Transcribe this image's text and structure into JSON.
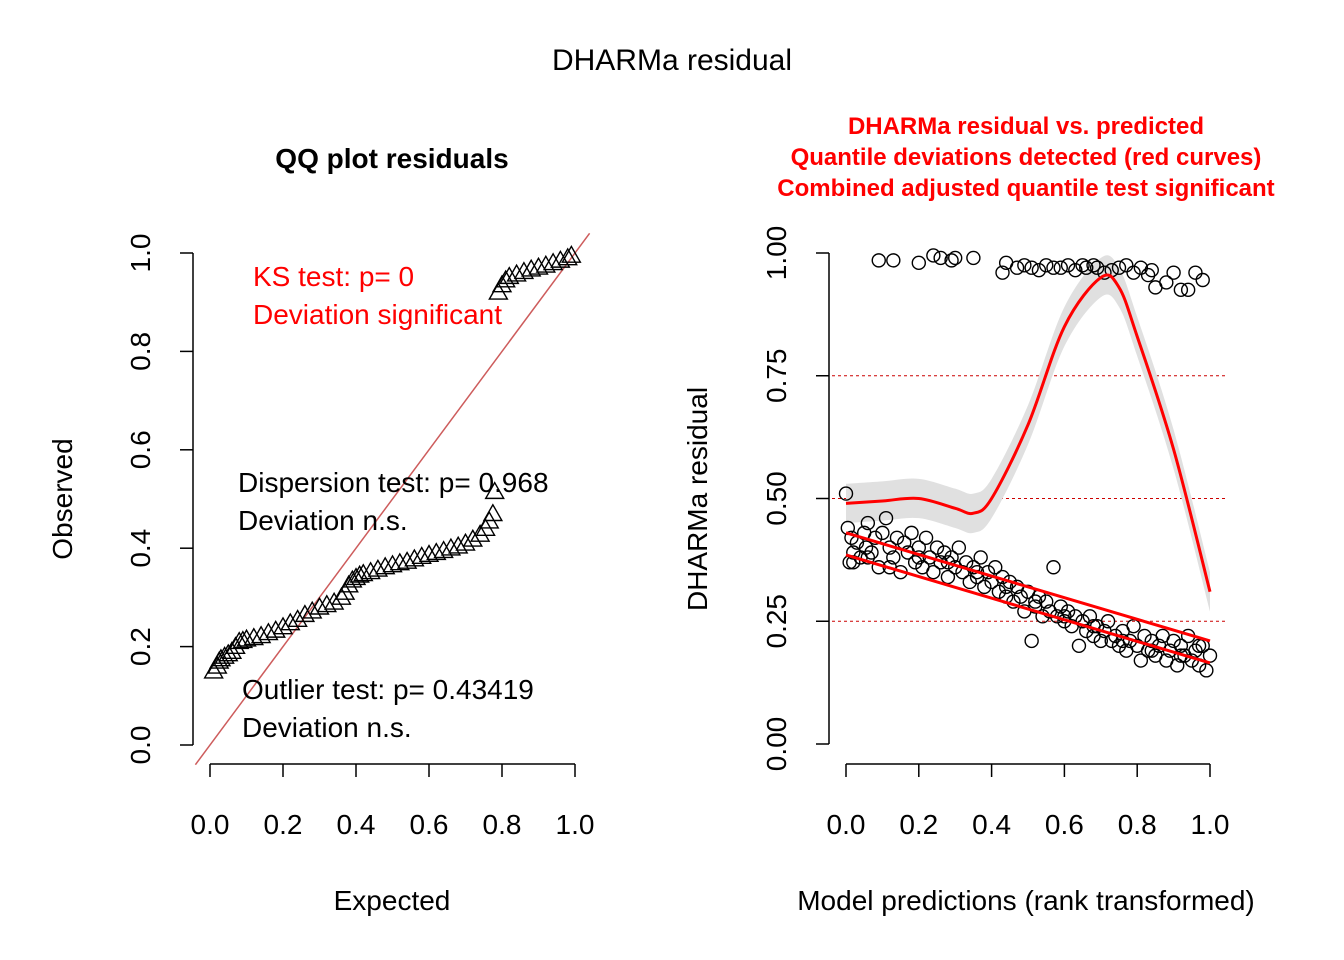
{
  "page_title": "DHARMa residual",
  "colors": {
    "accent": "#ff0000",
    "qq_line": "#cd5c5c",
    "band": "#e0e0e0",
    "grid_ref": "#cc0000",
    "ink": "#000000"
  },
  "chart_data": [
    {
      "type": "scatter",
      "title": "QQ plot residuals",
      "xlabel": "Expected",
      "ylabel": "Observed",
      "xlim": [
        0,
        1
      ],
      "ylim": [
        0,
        1
      ],
      "x_ticks": [
        "0.0",
        "0.2",
        "0.4",
        "0.6",
        "0.8",
        "1.0"
      ],
      "y_ticks": [
        "0.0",
        "0.2",
        "0.4",
        "0.6",
        "0.8",
        "1.0"
      ],
      "x_tick_values": [
        0,
        0.2,
        0.4,
        0.6,
        0.8,
        1.0
      ],
      "y_tick_values": [
        0,
        0.2,
        0.4,
        0.6,
        0.8,
        1.0
      ],
      "marker": "triangle",
      "reference_line": {
        "from": [
          0,
          0
        ],
        "to": [
          1,
          1
        ]
      },
      "annotations": {
        "ks_line1": "KS test: p= 0",
        "ks_line2": "Deviation  significant",
        "disp_line1": "Dispersion test: p= 0.968",
        "disp_line2": "Deviation  n.s.",
        "out_line1": "Outlier test: p= 0.43419",
        "out_line2": "Deviation  n.s."
      },
      "points": [
        [
          0.01,
          0.15
        ],
        [
          0.02,
          0.16
        ],
        [
          0.025,
          0.17
        ],
        [
          0.03,
          0.175
        ],
        [
          0.04,
          0.18
        ],
        [
          0.05,
          0.185
        ],
        [
          0.06,
          0.19
        ],
        [
          0.07,
          0.2
        ],
        [
          0.08,
          0.21
        ],
        [
          0.09,
          0.212
        ],
        [
          0.1,
          0.215
        ],
        [
          0.12,
          0.218
        ],
        [
          0.14,
          0.222
        ],
        [
          0.16,
          0.228
        ],
        [
          0.18,
          0.233
        ],
        [
          0.2,
          0.24
        ],
        [
          0.22,
          0.248
        ],
        [
          0.24,
          0.255
        ],
        [
          0.26,
          0.265
        ],
        [
          0.28,
          0.272
        ],
        [
          0.3,
          0.28
        ],
        [
          0.32,
          0.285
        ],
        [
          0.34,
          0.29
        ],
        [
          0.36,
          0.3
        ],
        [
          0.37,
          0.31
        ],
        [
          0.38,
          0.325
        ],
        [
          0.39,
          0.335
        ],
        [
          0.4,
          0.34
        ],
        [
          0.41,
          0.345
        ],
        [
          0.42,
          0.348
        ],
        [
          0.44,
          0.352
        ],
        [
          0.46,
          0.357
        ],
        [
          0.48,
          0.362
        ],
        [
          0.5,
          0.366
        ],
        [
          0.52,
          0.37
        ],
        [
          0.54,
          0.373
        ],
        [
          0.56,
          0.378
        ],
        [
          0.58,
          0.383
        ],
        [
          0.6,
          0.387
        ],
        [
          0.62,
          0.391
        ],
        [
          0.64,
          0.395
        ],
        [
          0.66,
          0.4
        ],
        [
          0.68,
          0.404
        ],
        [
          0.7,
          0.41
        ],
        [
          0.72,
          0.418
        ],
        [
          0.74,
          0.428
        ],
        [
          0.755,
          0.44
        ],
        [
          0.765,
          0.455
        ],
        [
          0.775,
          0.47
        ],
        [
          0.78,
          0.515
        ],
        [
          0.79,
          0.92
        ],
        [
          0.8,
          0.935
        ],
        [
          0.81,
          0.945
        ],
        [
          0.82,
          0.952
        ],
        [
          0.84,
          0.957
        ],
        [
          0.86,
          0.962
        ],
        [
          0.88,
          0.967
        ],
        [
          0.9,
          0.971
        ],
        [
          0.92,
          0.975
        ],
        [
          0.94,
          0.98
        ],
        [
          0.96,
          0.985
        ],
        [
          0.98,
          0.99
        ],
        [
          0.99,
          0.995
        ]
      ]
    },
    {
      "type": "scatter",
      "title_lines": [
        "DHARMa residual vs. predicted",
        "Quantile deviations detected (red curves)",
        "Combined adjusted quantile test significant"
      ],
      "xlabel": "Model predictions (rank transformed)",
      "ylabel": "DHARMa residual",
      "xlim": [
        0,
        1
      ],
      "ylim": [
        0,
        1
      ],
      "x_ticks": [
        "0.0",
        "0.2",
        "0.4",
        "0.6",
        "0.8",
        "1.0"
      ],
      "y_ticks": [
        "0.00",
        "0.25",
        "0.50",
        "0.75",
        "1.00"
      ],
      "x_tick_values": [
        0,
        0.2,
        0.4,
        0.6,
        0.8,
        1.0
      ],
      "y_tick_values": [
        0,
        0.25,
        0.5,
        0.75,
        1.0
      ],
      "reference_lines": [
        0.25,
        0.5,
        0.75
      ],
      "marker": "circle",
      "curves": {
        "upper_quantile": {
          "x": [
            0,
            0.1,
            0.2,
            0.3,
            0.35,
            0.4,
            0.5,
            0.6,
            0.7,
            0.75,
            0.8,
            0.9,
            1.0
          ],
          "y": [
            0.49,
            0.495,
            0.5,
            0.48,
            0.47,
            0.5,
            0.65,
            0.85,
            0.95,
            0.93,
            0.83,
            0.6,
            0.31
          ],
          "band": 0.04
        },
        "median_quantile": {
          "x": [
            0,
            1
          ],
          "y": [
            0.43,
            0.21
          ]
        },
        "lower_quantile": {
          "x": [
            0,
            1
          ],
          "y": [
            0.385,
            0.165
          ]
        }
      },
      "points": [
        [
          0.0,
          0.51
        ],
        [
          0.005,
          0.44
        ],
        [
          0.01,
          0.37
        ],
        [
          0.015,
          0.42
        ],
        [
          0.02,
          0.39
        ],
        [
          0.03,
          0.41
        ],
        [
          0.04,
          0.38
        ],
        [
          0.05,
          0.43
        ],
        [
          0.055,
          0.4
        ],
        [
          0.06,
          0.45
        ],
        [
          0.07,
          0.39
        ],
        [
          0.08,
          0.42
        ],
        [
          0.09,
          0.36
        ],
        [
          0.1,
          0.43
        ],
        [
          0.11,
          0.46
        ],
        [
          0.12,
          0.4
        ],
        [
          0.13,
          0.38
        ],
        [
          0.14,
          0.42
        ],
        [
          0.15,
          0.35
        ],
        [
          0.16,
          0.41
        ],
        [
          0.17,
          0.39
        ],
        [
          0.18,
          0.43
        ],
        [
          0.19,
          0.37
        ],
        [
          0.2,
          0.4
        ],
        [
          0.21,
          0.36
        ],
        [
          0.22,
          0.42
        ],
        [
          0.23,
          0.38
        ],
        [
          0.24,
          0.35
        ],
        [
          0.25,
          0.4
        ],
        [
          0.26,
          0.37
        ],
        [
          0.27,
          0.39
        ],
        [
          0.28,
          0.34
        ],
        [
          0.29,
          0.38
        ],
        [
          0.3,
          0.36
        ],
        [
          0.31,
          0.4
        ],
        [
          0.32,
          0.35
        ],
        [
          0.33,
          0.37
        ],
        [
          0.34,
          0.33
        ],
        [
          0.35,
          0.36
        ],
        [
          0.36,
          0.34
        ],
        [
          0.37,
          0.38
        ],
        [
          0.38,
          0.32
        ],
        [
          0.39,
          0.35
        ],
        [
          0.4,
          0.33
        ],
        [
          0.41,
          0.36
        ],
        [
          0.42,
          0.31
        ],
        [
          0.43,
          0.34
        ],
        [
          0.44,
          0.3
        ],
        [
          0.45,
          0.33
        ],
        [
          0.46,
          0.29
        ],
        [
          0.47,
          0.32
        ],
        [
          0.48,
          0.3
        ],
        [
          0.49,
          0.27
        ],
        [
          0.5,
          0.31
        ],
        [
          0.51,
          0.21
        ],
        [
          0.52,
          0.28
        ],
        [
          0.53,
          0.3
        ],
        [
          0.54,
          0.26
        ],
        [
          0.55,
          0.29
        ],
        [
          0.56,
          0.27
        ],
        [
          0.57,
          0.36
        ],
        [
          0.58,
          0.26
        ],
        [
          0.59,
          0.28
        ],
        [
          0.6,
          0.25
        ],
        [
          0.61,
          0.27
        ],
        [
          0.62,
          0.24
        ],
        [
          0.63,
          0.26
        ],
        [
          0.64,
          0.2
        ],
        [
          0.65,
          0.25
        ],
        [
          0.66,
          0.23
        ],
        [
          0.67,
          0.26
        ],
        [
          0.68,
          0.22
        ],
        [
          0.69,
          0.24
        ],
        [
          0.7,
          0.21
        ],
        [
          0.71,
          0.23
        ],
        [
          0.72,
          0.25
        ],
        [
          0.73,
          0.21
        ],
        [
          0.74,
          0.22
        ],
        [
          0.75,
          0.2
        ],
        [
          0.76,
          0.23
        ],
        [
          0.77,
          0.19
        ],
        [
          0.78,
          0.21
        ],
        [
          0.79,
          0.24
        ],
        [
          0.8,
          0.2
        ],
        [
          0.81,
          0.17
        ],
        [
          0.82,
          0.22
        ],
        [
          0.83,
          0.19
        ],
        [
          0.84,
          0.21
        ],
        [
          0.85,
          0.18
        ],
        [
          0.86,
          0.2
        ],
        [
          0.87,
          0.22
        ],
        [
          0.88,
          0.17
        ],
        [
          0.89,
          0.19
        ],
        [
          0.9,
          0.21
        ],
        [
          0.91,
          0.16
        ],
        [
          0.92,
          0.2
        ],
        [
          0.93,
          0.18
        ],
        [
          0.94,
          0.22
        ],
        [
          0.95,
          0.17
        ],
        [
          0.96,
          0.19
        ],
        [
          0.97,
          0.16
        ],
        [
          0.98,
          0.2
        ],
        [
          0.99,
          0.15
        ],
        [
          1.0,
          0.18
        ],
        [
          0.02,
          0.37
        ],
        [
          0.06,
          0.38
        ],
        [
          0.12,
          0.36
        ],
        [
          0.2,
          0.38
        ],
        [
          0.28,
          0.37
        ],
        [
          0.36,
          0.35
        ],
        [
          0.44,
          0.32
        ],
        [
          0.52,
          0.29
        ],
        [
          0.6,
          0.26
        ],
        [
          0.68,
          0.24
        ],
        [
          0.76,
          0.21
        ],
        [
          0.84,
          0.19
        ],
        [
          0.92,
          0.18
        ],
        [
          0.97,
          0.2
        ],
        [
          0.09,
          0.985
        ],
        [
          0.13,
          0.985
        ],
        [
          0.2,
          0.98
        ],
        [
          0.24,
          0.995
        ],
        [
          0.26,
          0.99
        ],
        [
          0.29,
          0.985
        ],
        [
          0.3,
          0.99
        ],
        [
          0.35,
          0.99
        ],
        [
          0.43,
          0.96
        ],
        [
          0.44,
          0.98
        ],
        [
          0.47,
          0.97
        ],
        [
          0.49,
          0.975
        ],
        [
          0.51,
          0.97
        ],
        [
          0.53,
          0.965
        ],
        [
          0.55,
          0.975
        ],
        [
          0.57,
          0.97
        ],
        [
          0.59,
          0.97
        ],
        [
          0.61,
          0.975
        ],
        [
          0.63,
          0.965
        ],
        [
          0.65,
          0.975
        ],
        [
          0.66,
          0.97
        ],
        [
          0.68,
          0.975
        ],
        [
          0.69,
          0.97
        ],
        [
          0.71,
          0.96
        ],
        [
          0.73,
          0.965
        ],
        [
          0.75,
          0.97
        ],
        [
          0.77,
          0.975
        ],
        [
          0.79,
          0.96
        ],
        [
          0.81,
          0.97
        ],
        [
          0.83,
          0.955
        ],
        [
          0.84,
          0.965
        ],
        [
          0.85,
          0.93
        ],
        [
          0.88,
          0.94
        ],
        [
          0.9,
          0.96
        ],
        [
          0.92,
          0.925
        ],
        [
          0.94,
          0.925
        ],
        [
          0.96,
          0.96
        ],
        [
          0.98,
          0.945
        ]
      ]
    }
  ]
}
